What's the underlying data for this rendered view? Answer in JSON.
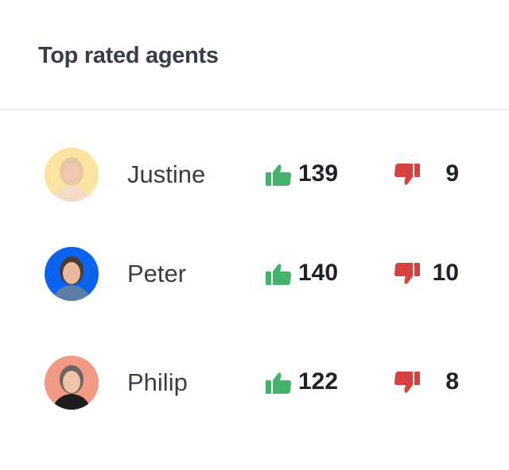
{
  "header": {
    "title": "Top rated agents"
  },
  "colors": {
    "thumb_up": "#45b26b",
    "thumb_down": "#d94141"
  },
  "agents": [
    {
      "name": "Justine",
      "up": "139",
      "down": "9",
      "avatar_bg": "#fde3a0",
      "hair": "#e2c9a0",
      "skin": "#f1c7b0",
      "shirt": "#f3dcc8"
    },
    {
      "name": "Peter",
      "up": "140",
      "down": "10",
      "avatar_bg": "#0a64f0",
      "hair": "#4a3a30",
      "skin": "#e8b99c",
      "shirt": "#5b7fa8"
    },
    {
      "name": "Philip",
      "up": "122",
      "down": "8",
      "avatar_bg": "#f29a84",
      "hair": "#6b6660",
      "skin": "#efc3a6",
      "shirt": "#1d1d1f"
    }
  ]
}
